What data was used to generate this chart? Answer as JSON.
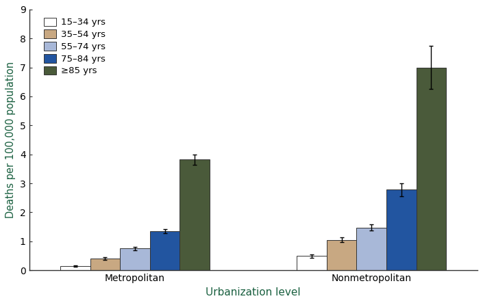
{
  "title": "",
  "xlabel": "Urbanization level",
  "ylabel": "Deaths per 100,000 population",
  "ylim": [
    0,
    9.0
  ],
  "yticks": [
    0,
    1.0,
    2.0,
    3.0,
    4.0,
    5.0,
    6.0,
    7.0,
    8.0,
    9.0
  ],
  "groups": [
    "Metropolitan",
    "Nonmetropolitan"
  ],
  "age_groups": [
    "15–34 yrs",
    "35–54 yrs",
    "55–74 yrs",
    "75–84 yrs",
    "≥85 yrs"
  ],
  "bar_colors": [
    "#ffffff",
    "#c8a882",
    "#a8b8d8",
    "#2255a0",
    "#4a5a3a"
  ],
  "bar_edgecolors": [
    "#333333",
    "#333333",
    "#333333",
    "#333333",
    "#333333"
  ],
  "values": {
    "Metropolitan": [
      0.15,
      0.4,
      0.75,
      1.35,
      3.82
    ],
    "Nonmetropolitan": [
      0.5,
      1.05,
      1.48,
      2.78,
      7.0
    ]
  },
  "errors": {
    "Metropolitan": [
      0.03,
      0.05,
      0.06,
      0.08,
      0.18
    ],
    "Nonmetropolitan": [
      0.06,
      0.08,
      0.1,
      0.22,
      0.75
    ]
  },
  "bar_width": 0.48,
  "background_color": "#ffffff",
  "tick_label_fontsize": 10,
  "axis_label_fontsize": 11,
  "legend_fontsize": 9.5,
  "label_color": "#000000",
  "xlabel_color": "#1a6040",
  "ylabel_color": "#1a6040"
}
